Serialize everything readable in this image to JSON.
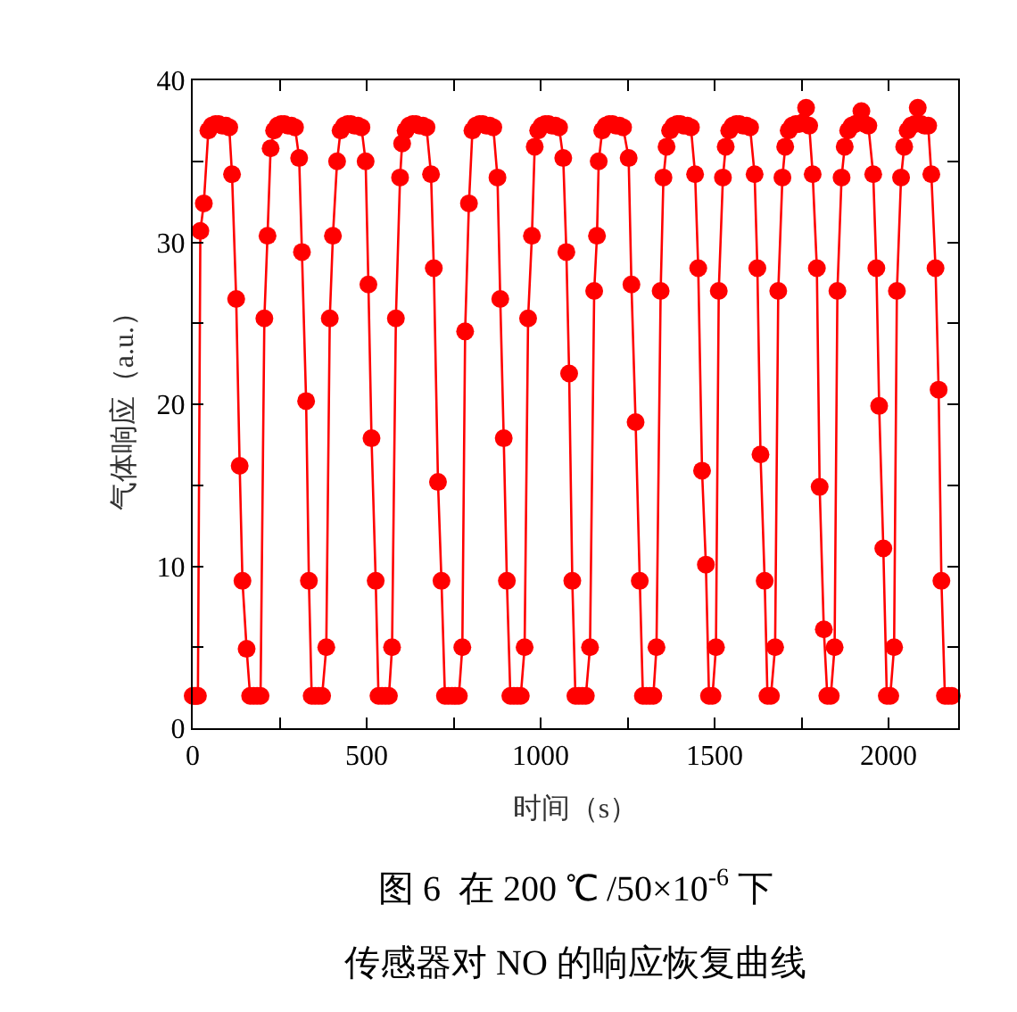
{
  "chart_data": {
    "type": "line",
    "title": "图 6  在 200 ℃ /50×10$^{-6}$ 下",
    "subtitle": "传感器对 NO 的响应恢复曲线",
    "xlabel": "时间（s）",
    "ylabel": "气体响应（a.u.）",
    "xlim": [
      0,
      2200
    ],
    "xticks": [
      0,
      {
        "value": 250,
        "label": null
      },
      500,
      {
        "value": 750,
        "label": null
      },
      1000,
      {
        "value": 1250,
        "label": null
      },
      1500,
      {
        "value": 1750,
        "label": null
      },
      2000
    ],
    "ylim": [
      0,
      40
    ],
    "yticks": [
      0,
      {
        "value": 5,
        "label": null
      },
      10,
      {
        "value": 15,
        "label": null
      },
      20,
      {
        "value": 25,
        "label": null
      },
      30,
      {
        "value": 35,
        "label": null
      },
      40
    ],
    "marker": "circle",
    "line_style": "solid",
    "series": [
      {
        "color": "#ff0000",
        "x": [
          0,
          5,
          10,
          15,
          22,
          32,
          45,
          55,
          65,
          75,
          85,
          95,
          105,
          113,
          125,
          135,
          143,
          155,
          165,
          175,
          185,
          195,
          206,
          215,
          224,
          234,
          244,
          254,
          264,
          274,
          284,
          294,
          306,
          314,
          326,
          334,
          342,
          352,
          362,
          372,
          384,
          394,
          403,
          415,
          425,
          435,
          445,
          455,
          465,
          475,
          485,
          497,
          505,
          514,
          526,
          534,
          544,
          554,
          564,
          573,
          584,
          596,
          602,
          612,
          622,
          632,
          642,
          652,
          662,
          672,
          685,
          693,
          705,
          715,
          725,
          735,
          745,
          755,
          765,
          775,
          783,
          794,
          804,
          814,
          824,
          834,
          844,
          854,
          864,
          876,
          884,
          894,
          903,
          913,
          923,
          933,
          943,
          954,
          964,
          975,
          983,
          993,
          1003,
          1013,
          1023,
          1033,
          1043,
          1053,
          1065,
          1074,
          1082,
          1091,
          1100,
          1110,
          1120,
          1130,
          1142,
          1154,
          1162,
          1167,
          1177,
          1187,
          1197,
          1207,
          1217,
          1227,
          1237,
          1253,
          1261,
          1273,
          1285,
          1294,
          1304,
          1314,
          1324,
          1333,
          1345,
          1353,
          1362,
          1372,
          1382,
          1392,
          1402,
          1412,
          1422,
          1432,
          1444,
          1453,
          1464,
          1475,
          1484,
          1494,
          1504,
          1512,
          1524,
          1532,
          1542,
          1552,
          1562,
          1572,
          1582,
          1592,
          1602,
          1615,
          1623,
          1632,
          1644,
          1652,
          1662,
          1674,
          1683,
          1695,
          1703,
          1713,
          1723,
          1733,
          1743,
          1753,
          1763,
          1772,
          1782,
          1794,
          1802,
          1814,
          1824,
          1834,
          1845,
          1853,
          1865,
          1874,
          1884,
          1894,
          1904,
          1914,
          1922,
          1932,
          1942,
          1956,
          1965,
          1973,
          1985,
          1995,
          2005,
          2016,
          2024,
          2036,
          2045,
          2055,
          2065,
          2075,
          2084,
          2094,
          2104,
          2114,
          2123,
          2135,
          2144,
          2152,
          2162,
          2172,
          2182
        ],
        "values": [
          2.0,
          2.0,
          2.0,
          2.0,
          30.7,
          32.4,
          36.9,
          37.2,
          37.3,
          37.3,
          37.2,
          37.2,
          37.1,
          34.2,
          26.5,
          16.2,
          9.1,
          4.9,
          2.0,
          2.0,
          2.0,
          2.0,
          25.3,
          30.4,
          35.8,
          36.9,
          37.2,
          37.3,
          37.3,
          37.2,
          37.2,
          37.1,
          35.2,
          29.4,
          20.2,
          9.1,
          2.0,
          2.0,
          2.0,
          2.0,
          5.0,
          25.3,
          30.4,
          35.0,
          36.9,
          37.2,
          37.3,
          37.3,
          37.2,
          37.2,
          37.1,
          35.0,
          27.4,
          17.9,
          9.1,
          2.0,
          2.0,
          2.0,
          2.0,
          5.0,
          25.3,
          34.0,
          36.1,
          36.9,
          37.2,
          37.3,
          37.3,
          37.2,
          37.2,
          37.1,
          34.2,
          28.4,
          15.2,
          9.1,
          2.0,
          2.0,
          2.0,
          2.0,
          2.0,
          5.0,
          24.5,
          32.4,
          36.9,
          37.2,
          37.3,
          37.3,
          37.2,
          37.2,
          37.1,
          34.0,
          26.5,
          17.9,
          9.1,
          2.0,
          2.0,
          2.0,
          2.0,
          5.0,
          25.3,
          30.4,
          35.9,
          36.9,
          37.2,
          37.3,
          37.3,
          37.2,
          37.2,
          37.1,
          35.2,
          29.4,
          21.9,
          9.1,
          2.0,
          2.0,
          2.0,
          2.0,
          5.0,
          27.0,
          30.4,
          35.0,
          36.9,
          37.2,
          37.3,
          37.3,
          37.2,
          37.2,
          37.1,
          35.2,
          27.4,
          18.9,
          9.1,
          2.0,
          2.0,
          2.0,
          2.0,
          5.0,
          27.0,
          34.0,
          35.9,
          36.9,
          37.2,
          37.3,
          37.3,
          37.2,
          37.2,
          37.1,
          34.2,
          28.4,
          15.9,
          10.1,
          2.0,
          2.0,
          5.0,
          27.0,
          34.0,
          35.9,
          36.9,
          37.2,
          37.3,
          37.3,
          37.2,
          37.2,
          37.1,
          34.2,
          28.4,
          16.9,
          9.1,
          2.0,
          2.0,
          5.0,
          27.0,
          34.0,
          35.9,
          36.9,
          37.2,
          37.3,
          37.3,
          37.4,
          38.3,
          37.2,
          34.2,
          28.4,
          14.9,
          6.1,
          2.0,
          2.0,
          5.0,
          27.0,
          34.0,
          35.9,
          36.9,
          37.2,
          37.3,
          37.4,
          38.1,
          37.3,
          37.2,
          34.2,
          28.4,
          19.9,
          11.1,
          2.0,
          2.0,
          5.0,
          27.0,
          34.0,
          35.9,
          36.9,
          37.2,
          37.3,
          38.3,
          37.3,
          37.2,
          37.2,
          34.2,
          28.4,
          20.9,
          9.1,
          2.0,
          2.0,
          2.0
        ]
      }
    ]
  }
}
